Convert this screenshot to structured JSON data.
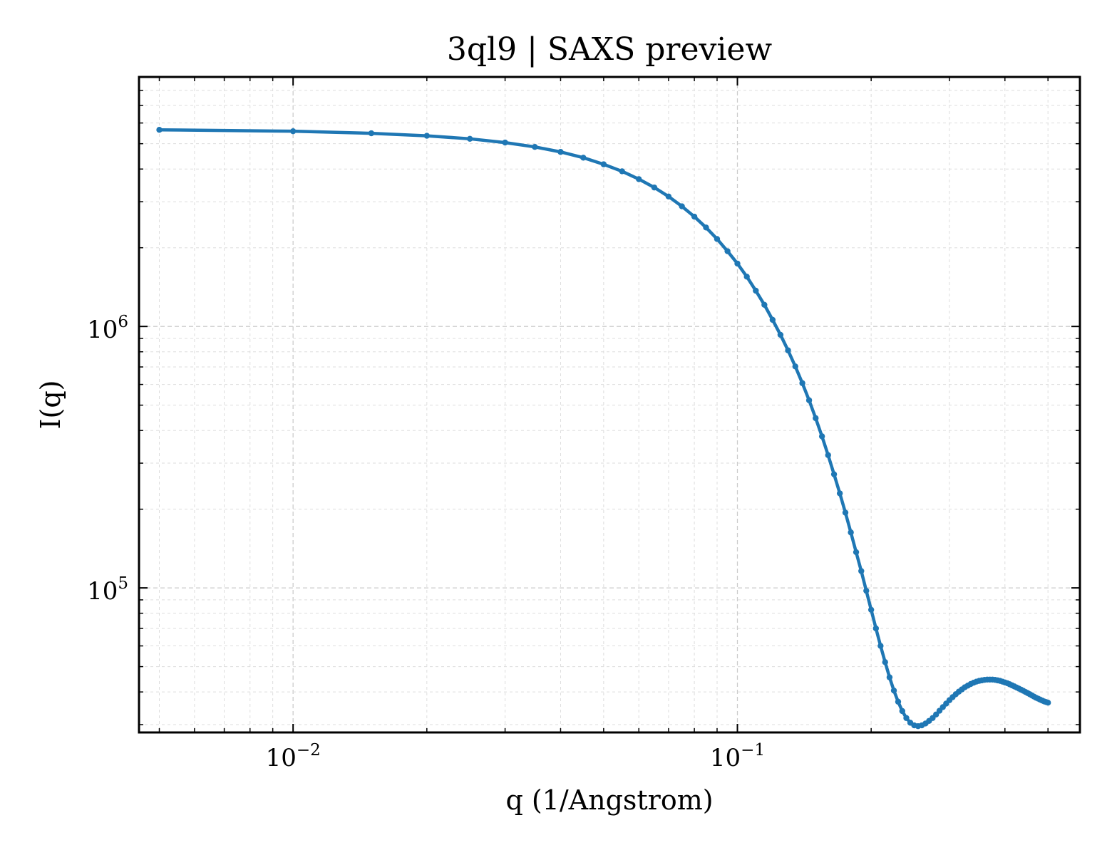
{
  "chart_data": {
    "type": "line",
    "title": "3ql9 | SAXS preview",
    "xlabel": "q (1/Angstrom)",
    "ylabel": "I(q)",
    "xscale": "log",
    "yscale": "log",
    "xlim": [
      0.0045,
      0.59
    ],
    "ylim": [
      28000,
      9000000
    ],
    "grid": true,
    "legend": "none",
    "colors": {
      "series": "#1f77b4"
    },
    "x_ticks": [
      {
        "value": 0.01,
        "base": "10",
        "exp": "−2"
      },
      {
        "value": 0.1,
        "base": "10",
        "exp": "−1"
      }
    ],
    "y_ticks": [
      {
        "value": 100000,
        "base": "10",
        "exp": "5"
      },
      {
        "value": 1000000,
        "base": "10",
        "exp": "6"
      }
    ],
    "series": [
      {
        "x": [
          0.005,
          0.01,
          0.015,
          0.02,
          0.025,
          0.03,
          0.035,
          0.04,
          0.045,
          0.05,
          0.055,
          0.06,
          0.065,
          0.07,
          0.075,
          0.08,
          0.085,
          0.09,
          0.095,
          0.1,
          0.105,
          0.11,
          0.115,
          0.12,
          0.125,
          0.13,
          0.135,
          0.14,
          0.145,
          0.15,
          0.155,
          0.16,
          0.165,
          0.17,
          0.175,
          0.18,
          0.185,
          0.19,
          0.195,
          0.2,
          0.205,
          0.21,
          0.215,
          0.22,
          0.225,
          0.23,
          0.235,
          0.24,
          0.245,
          0.25,
          0.255,
          0.26,
          0.265,
          0.27,
          0.275,
          0.28,
          0.285,
          0.29,
          0.295,
          0.3,
          0.305,
          0.31,
          0.315,
          0.32,
          0.325,
          0.33,
          0.335,
          0.34,
          0.345,
          0.35,
          0.355,
          0.36,
          0.365,
          0.37,
          0.375,
          0.38,
          0.385,
          0.39,
          0.395,
          0.4,
          0.405,
          0.41,
          0.415,
          0.42,
          0.425,
          0.43,
          0.435,
          0.44,
          0.445,
          0.45,
          0.455,
          0.46,
          0.465,
          0.47,
          0.475,
          0.48,
          0.485,
          0.49,
          0.495,
          0.5
        ],
        "y": [
          5650000,
          5580000,
          5480000,
          5360000,
          5220000,
          5050000,
          4860000,
          4650000,
          4420000,
          4170000,
          3920000,
          3660000,
          3400000,
          3140000,
          2880000,
          2630000,
          2390000,
          2160000,
          1940000,
          1740000,
          1550000,
          1370000,
          1210000,
          1060000,
          929000,
          810000,
          703000,
          607000,
          522000,
          446000,
          380000,
          322000,
          272000,
          230000,
          194000,
          163000,
          137000,
          116000,
          97500,
          82500,
          70000,
          60000,
          52000,
          45500,
          40500,
          36700,
          33800,
          31800,
          30500,
          29800,
          29600,
          29800,
          30300,
          31000,
          31800,
          32800,
          33900,
          35000,
          36100,
          37200,
          38200,
          39200,
          40100,
          40900,
          41700,
          42300,
          42900,
          43400,
          43800,
          44100,
          44300,
          44500,
          44600,
          44600,
          44600,
          44500,
          44300,
          44100,
          43800,
          43500,
          43200,
          42800,
          42400,
          42000,
          41600,
          41200,
          40800,
          40400,
          40000,
          39600,
          39200,
          38800,
          38400,
          38000,
          37700,
          37400,
          37100,
          36800,
          36600,
          36400
        ]
      }
    ]
  }
}
